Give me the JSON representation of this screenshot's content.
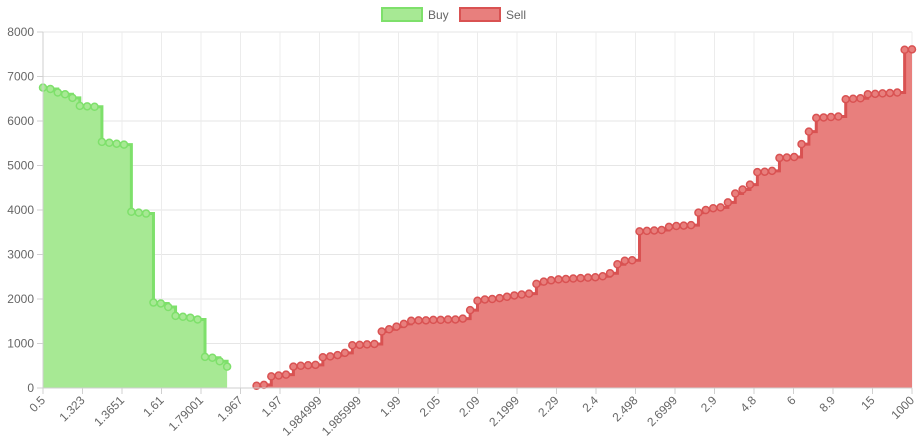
{
  "chart_data": {
    "type": "area",
    "step": true,
    "legend_position": "top",
    "grid": true,
    "ylim": [
      0,
      8000
    ],
    "y_ticks": [
      0,
      1000,
      2000,
      3000,
      4000,
      5000,
      6000,
      7000,
      8000
    ],
    "x_tick_labels": [
      "0.5",
      "1.323",
      "1.3651",
      "1.61",
      "1.79001",
      "1.967",
      "1.97",
      "1.984999",
      "1.985999",
      "1.99",
      "2.05",
      "2.09",
      "2.1999",
      "2.29",
      "2.4",
      "2.498",
      "2.6999",
      "2.9",
      "4.8",
      "6",
      "8.9",
      "15",
      "1000"
    ],
    "series": [
      {
        "name": "Buy",
        "color": "#7ee06b",
        "fill": "#a7e994",
        "values": [
          6750,
          6720,
          6640,
          6600,
          6520,
          6340,
          6330,
          6320,
          5530,
          5510,
          5490,
          5470,
          3960,
          3940,
          3920,
          1920,
          1900,
          1820,
          1620,
          1600,
          1580,
          1540,
          700,
          680,
          600,
          480
        ]
      },
      {
        "name": "Sell",
        "color": "#d95252",
        "fill": "#e87f7d",
        "values": [
          50,
          70,
          260,
          280,
          300,
          480,
          500,
          510,
          520,
          690,
          710,
          740,
          790,
          960,
          970,
          980,
          990,
          1270,
          1320,
          1380,
          1440,
          1510,
          1520,
          1520,
          1530,
          1530,
          1540,
          1540,
          1560,
          1750,
          1960,
          1990,
          2000,
          2020,
          2050,
          2080,
          2100,
          2120,
          2340,
          2390,
          2420,
          2440,
          2450,
          2460,
          2470,
          2480,
          2490,
          2510,
          2580,
          2780,
          2860,
          2870,
          3520,
          3530,
          3540,
          3550,
          3620,
          3640,
          3650,
          3660,
          3940,
          4000,
          4040,
          4060,
          4170,
          4370,
          4460,
          4570,
          4850,
          4860,
          4880,
          5170,
          5180,
          5190,
          5480,
          5760,
          6070,
          6080,
          6090,
          6100,
          6490,
          6500,
          6510,
          6600,
          6610,
          6620,
          6630,
          6640,
          7600,
          7610
        ]
      }
    ]
  }
}
